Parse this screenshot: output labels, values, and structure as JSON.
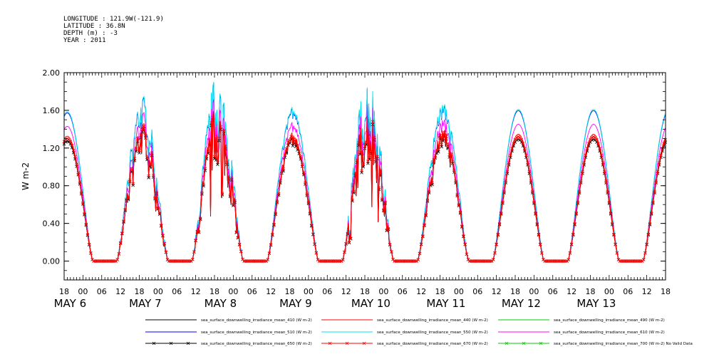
{
  "header": {
    "lines": [
      "LONGITUDE : 121.9W(-121.9)",
      "LATITUDE : 36.8N",
      "DEPTH (m) : -3",
      "YEAR : 2011"
    ]
  },
  "chart_data": {
    "type": "line",
    "ylabel": "W m-2",
    "ylim": [
      -0.2,
      2.0
    ],
    "y_ticks": [
      "0.00",
      "0.40",
      "0.80",
      "1.20",
      "1.60",
      "2.00"
    ],
    "y_tick_values": [
      0.0,
      0.4,
      0.8,
      1.2,
      1.6,
      2.0
    ],
    "xlim_hours": [
      18,
      210
    ],
    "x_hour_ticks": [
      "18",
      "00",
      "06",
      "12",
      "18",
      "00",
      "06",
      "12",
      "18",
      "00",
      "06",
      "12",
      "18",
      "00",
      "06",
      "12",
      "18",
      "00",
      "06",
      "12",
      "18",
      "00",
      "06",
      "12",
      "18",
      "00",
      "06",
      "12",
      "18",
      "00",
      "06",
      "12",
      "18"
    ],
    "date_labels": [
      "MAY  6",
      "MAY  7",
      "MAY  8",
      "MAY  9",
      "MAY 10",
      "MAY 11",
      "MAY 12",
      "MAY 13"
    ],
    "grid": false,
    "legend_position": "bottom",
    "days": [
      {
        "peak": 1.3,
        "cloudiness": 0.0
      },
      {
        "peak": 1.28,
        "cloudiness": 0.45
      },
      {
        "peak": 1.3,
        "cloudiness": 0.9
      },
      {
        "peak": 1.3,
        "cloudiness": 0.1
      },
      {
        "peak": 1.3,
        "cloudiness": 0.85
      },
      {
        "peak": 1.3,
        "cloudiness": 0.2
      },
      {
        "peak": 1.32,
        "cloudiness": 0.0
      },
      {
        "peak": 1.32,
        "cloudiness": 0.0
      }
    ],
    "series": [
      {
        "name": "sea_surface_downwelling_irradiance_mean_410 (W m-2)",
        "color": "#000000",
        "scale": 1.0,
        "marker": false
      },
      {
        "name": "sea_surface_downwelling_irradiance_mean_440 (W m-2)",
        "color": "#ff0000",
        "scale": 1.02,
        "marker": false
      },
      {
        "name": "sea_surface_downwelling_irradiance_mean_490 (W m-2)",
        "color": "#00cc00",
        "scale": 1.11,
        "marker": false
      },
      {
        "name": "sea_surface_downwelling_irradiance_mean_510 (W m-2)",
        "color": "#0000ff",
        "scale": 1.21,
        "marker": false
      },
      {
        "name": "sea_surface_downwelling_irradiance_mean_550 (W m-2)",
        "color": "#00e5ee",
        "scale": 1.22,
        "marker": false
      },
      {
        "name": "sea_surface_downwelling_irradiance_mean_610 (W m-2)",
        "color": "#ff00ff",
        "scale": 1.1,
        "marker": false
      },
      {
        "name": "sea_surface_downwelling_irradiance_mean_650 (W m-2)",
        "color": "#000000",
        "scale": 0.98,
        "marker": true
      },
      {
        "name": "sea_surface_downwelling_irradiance_mean_670 (W m-2)",
        "color": "#ff0000",
        "scale": 1.0,
        "marker": true
      },
      {
        "name": "sea_surface_downwelling_irradiance_mean_700 (W m-2) No Valid Data",
        "color": "#00cc00",
        "scale": 0,
        "marker": true
      }
    ]
  }
}
